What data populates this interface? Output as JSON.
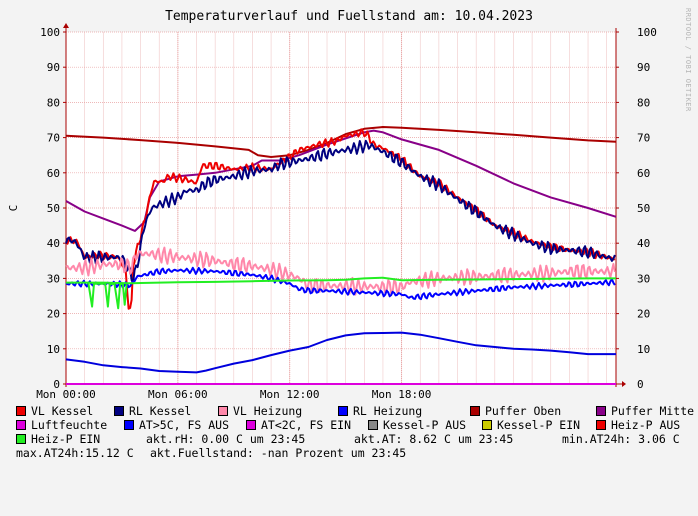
{
  "title": "Temperaturverlauf und Fuellstand am: 10.04.2023",
  "watermark": "RRDTOOL / TOBI OETIKER",
  "chart_data": {
    "type": "line",
    "ylabel": "C",
    "ylim": [
      0,
      100
    ],
    "yticks": [
      0,
      10,
      20,
      30,
      40,
      50,
      60,
      70,
      80,
      90,
      100
    ],
    "xlim_hours": [
      0,
      29.5
    ],
    "xticks": [
      {
        "label": "Mon 00:00",
        "hour": 0
      },
      {
        "label": "Mon 06:00",
        "hour": 6
      },
      {
        "label": "Mon 12:00",
        "hour": 12
      },
      {
        "label": "Mon 18:00",
        "hour": 18
      }
    ],
    "grid": true,
    "series": [
      {
        "name": "Puffer Oben",
        "color": "#aa0000",
        "width": 2,
        "points": [
          [
            0,
            70.5
          ],
          [
            2,
            70
          ],
          [
            4,
            69.3
          ],
          [
            6,
            68.5
          ],
          [
            8,
            67.5
          ],
          [
            9.8,
            66.5
          ],
          [
            10.3,
            65
          ],
          [
            11,
            64.5
          ],
          [
            12,
            65
          ],
          [
            13,
            66.5
          ],
          [
            14,
            68.5
          ],
          [
            15,
            71
          ],
          [
            16,
            72.5
          ],
          [
            17,
            73
          ],
          [
            18,
            72.8
          ],
          [
            20,
            72.2
          ],
          [
            22,
            71.5
          ],
          [
            24,
            70.8
          ],
          [
            26,
            70
          ],
          [
            28,
            69.2
          ],
          [
            29.5,
            68.8
          ]
        ]
      },
      {
        "name": "Puffer Mitte",
        "color": "#880088",
        "width": 2,
        "points": [
          [
            0,
            52
          ],
          [
            1,
            49
          ],
          [
            2,
            47
          ],
          [
            3,
            45
          ],
          [
            3.7,
            43.5
          ],
          [
            4.2,
            46
          ],
          [
            4.5,
            53
          ],
          [
            5,
            57.5
          ],
          [
            6,
            59
          ],
          [
            7,
            59.5
          ],
          [
            8,
            60
          ],
          [
            9,
            61
          ],
          [
            10,
            62
          ],
          [
            10.5,
            63.5
          ],
          [
            11.5,
            63.5
          ],
          [
            12.5,
            65
          ],
          [
            14,
            68
          ],
          [
            16,
            71.5
          ],
          [
            16.5,
            72
          ],
          [
            17,
            71.5
          ],
          [
            18,
            69.5
          ],
          [
            20,
            66.5
          ],
          [
            22,
            62
          ],
          [
            24,
            57
          ],
          [
            26,
            53
          ],
          [
            28,
            50
          ],
          [
            29.5,
            47.5
          ]
        ]
      },
      {
        "name": "VL Kessel",
        "color": "#ee0000",
        "width": 2,
        "noise": 1.2,
        "points": [
          [
            0,
            41
          ],
          [
            0.6,
            40.5
          ],
          [
            1,
            36
          ],
          [
            1.8,
            36.5
          ],
          [
            2.8,
            36
          ],
          [
            3.2,
            32
          ],
          [
            3.35,
            22
          ],
          [
            3.5,
            20.5
          ],
          [
            3.6,
            34
          ],
          [
            3.8,
            38
          ],
          [
            4.2,
            46
          ],
          [
            4.5,
            53
          ],
          [
            4.7,
            57.5
          ],
          [
            5.2,
            57.5
          ],
          [
            5.5,
            59
          ],
          [
            6.5,
            58
          ],
          [
            7,
            57
          ],
          [
            7.3,
            62
          ],
          [
            8,
            62
          ],
          [
            9,
            61
          ],
          [
            10,
            61.5
          ],
          [
            11,
            61
          ],
          [
            11.5,
            63
          ],
          [
            12,
            64.5
          ],
          [
            12.5,
            66.5
          ],
          [
            13.5,
            68
          ],
          [
            14.5,
            69
          ],
          [
            15,
            70.5
          ],
          [
            16,
            71.5
          ],
          [
            16.2,
            70.5
          ],
          [
            16.5,
            68
          ],
          [
            17,
            67
          ],
          [
            18,
            64
          ],
          [
            19,
            59
          ],
          [
            20,
            57
          ],
          [
            21,
            53
          ],
          [
            22,
            49.5
          ],
          [
            23,
            45
          ],
          [
            24,
            43
          ],
          [
            25,
            40.5
          ],
          [
            26,
            39
          ],
          [
            27,
            38
          ],
          [
            28,
            37.5
          ],
          [
            29,
            36
          ],
          [
            29.5,
            35.5
          ]
        ]
      },
      {
        "name": "RL Kessel",
        "color": "#000080",
        "width": 2,
        "noise": 1.8,
        "points": [
          [
            0,
            41
          ],
          [
            0.5,
            40.5
          ],
          [
            1,
            36
          ],
          [
            2,
            36
          ],
          [
            3,
            36
          ],
          [
            3.6,
            30
          ],
          [
            3.8,
            33
          ],
          [
            4.2,
            45
          ],
          [
            4.6,
            50
          ],
          [
            5,
            51
          ],
          [
            6,
            53
          ],
          [
            6.5,
            55
          ],
          [
            7,
            55
          ],
          [
            7.5,
            57
          ],
          [
            8,
            58
          ],
          [
            9,
            59
          ],
          [
            10,
            60.5
          ],
          [
            11,
            61
          ],
          [
            11.5,
            62.5
          ],
          [
            12,
            63
          ],
          [
            13,
            64
          ],
          [
            14,
            65.5
          ],
          [
            15,
            66.5
          ],
          [
            16,
            67.5
          ],
          [
            16.2,
            68
          ],
          [
            17,
            66
          ],
          [
            18,
            63
          ],
          [
            19,
            59
          ],
          [
            20,
            56.5
          ],
          [
            21,
            52.5
          ],
          [
            22,
            49
          ],
          [
            23,
            45
          ],
          [
            24,
            42.5
          ],
          [
            25,
            40
          ],
          [
            26,
            38.5
          ],
          [
            27,
            38
          ],
          [
            28,
            37.5
          ],
          [
            29,
            36
          ],
          [
            29.5,
            35.5
          ]
        ]
      },
      {
        "name": "VL Heizung",
        "color": "#ff88aa",
        "width": 2,
        "noise": 2.4,
        "points": [
          [
            0,
            33
          ],
          [
            1,
            33
          ],
          [
            2,
            34
          ],
          [
            3,
            34
          ],
          [
            3.5,
            33
          ],
          [
            3.8,
            37
          ],
          [
            4.5,
            37
          ],
          [
            6,
            36
          ],
          [
            8,
            35
          ],
          [
            9,
            34
          ],
          [
            10,
            33.5
          ],
          [
            11,
            32.5
          ],
          [
            12,
            31
          ],
          [
            12.5,
            30
          ],
          [
            13,
            28
          ],
          [
            18,
            27.5
          ],
          [
            18.5,
            29
          ],
          [
            20,
            30
          ],
          [
            22,
            30.5
          ],
          [
            24,
            31
          ],
          [
            26,
            31.5
          ],
          [
            27,
            32
          ],
          [
            29.5,
            32
          ]
        ]
      },
      {
        "name": "RL Heizung",
        "color": "#0000ff",
        "width": 2,
        "noise": 0.9,
        "points": [
          [
            0,
            28.5
          ],
          [
            1,
            28.5
          ],
          [
            2,
            28.5
          ],
          [
            3,
            28.3
          ],
          [
            3.5,
            28
          ],
          [
            3.8,
            30.5
          ],
          [
            5,
            32
          ],
          [
            6,
            32.3
          ],
          [
            8,
            32
          ],
          [
            9,
            31.5
          ],
          [
            10,
            31
          ],
          [
            11,
            30
          ],
          [
            12,
            28.5
          ],
          [
            12.5,
            27
          ],
          [
            13,
            26.5
          ],
          [
            14,
            26.5
          ],
          [
            16,
            26
          ],
          [
            18,
            25.5
          ],
          [
            18.5,
            24.5
          ],
          [
            20,
            25.5
          ],
          [
            22,
            26.5
          ],
          [
            24,
            27.5
          ],
          [
            26,
            28
          ],
          [
            28,
            28.5
          ],
          [
            29.5,
            29
          ]
        ]
      },
      {
        "name": "Heiz-P EIN",
        "color": "#22ee22",
        "width": 2,
        "points": [
          [
            0,
            28.8
          ],
          [
            2,
            28.8
          ],
          [
            3.5,
            28.6
          ],
          [
            4,
            28.7
          ],
          [
            6,
            28.9
          ],
          [
            8,
            29
          ],
          [
            10,
            29.2
          ],
          [
            12,
            29.4
          ],
          [
            14,
            29.5
          ],
          [
            15,
            29.6
          ],
          [
            16,
            30
          ],
          [
            17,
            30.2
          ],
          [
            18,
            29.5
          ],
          [
            20,
            29.6
          ],
          [
            22,
            29.7
          ],
          [
            24,
            29.8
          ],
          [
            26,
            29.9
          ],
          [
            28,
            30
          ],
          [
            29.5,
            30
          ]
        ]
      },
      {
        "name": "Heiz-P EIN dips",
        "color": "#22ee22",
        "width": 2,
        "points": [
          [
            1.2,
            28.6
          ],
          [
            1.4,
            22
          ],
          [
            1.5,
            28.5
          ],
          [
            2.1,
            28.5
          ],
          [
            2.25,
            22
          ],
          [
            2.35,
            28.4
          ],
          [
            2.6,
            28.4
          ],
          [
            2.8,
            21.5
          ],
          [
            2.9,
            28.4
          ],
          [
            3.05,
            28.4
          ],
          [
            3.15,
            22.5
          ],
          [
            3.25,
            28.3
          ]
        ]
      },
      {
        "name": "Luftfeuchte",
        "color": "#0000dd",
        "width": 2,
        "points": [
          [
            0,
            7
          ],
          [
            1,
            6.3
          ],
          [
            2,
            5.3
          ],
          [
            3,
            4.8
          ],
          [
            4,
            4.4
          ],
          [
            5,
            3.7
          ],
          [
            6,
            3.5
          ],
          [
            7,
            3.3
          ],
          [
            7.5,
            3.8
          ],
          [
            8,
            4.5
          ],
          [
            9,
            5.8
          ],
          [
            10,
            6.8
          ],
          [
            11,
            8.2
          ],
          [
            12,
            9.5
          ],
          [
            13,
            10.5
          ],
          [
            14,
            12.5
          ],
          [
            15,
            13.8
          ],
          [
            16,
            14.4
          ],
          [
            17,
            14.5
          ],
          [
            18,
            14.6
          ],
          [
            19,
            14
          ],
          [
            20,
            13
          ],
          [
            21,
            12
          ],
          [
            22,
            11
          ],
          [
            23,
            10.5
          ],
          [
            24,
            10
          ],
          [
            25,
            9.8
          ],
          [
            26,
            9.5
          ],
          [
            27,
            9
          ],
          [
            28,
            8.5
          ],
          [
            29.5,
            8.5
          ]
        ]
      },
      {
        "name": "baseline",
        "color": "#dd00dd",
        "width": 2,
        "points": [
          [
            0,
            0
          ],
          [
            29.5,
            0
          ]
        ]
      }
    ]
  },
  "legend": [
    {
      "label": "VL Kessel",
      "color": "#ee0000"
    },
    {
      "label": "RL Kessel",
      "color": "#000080"
    },
    {
      "label": "VL Heizung",
      "color": "#ff88aa"
    },
    {
      "label": "RL Heizung",
      "color": "#0000ff"
    },
    {
      "label": "Puffer Oben",
      "color": "#aa0000"
    },
    {
      "label": "Puffer Mitte",
      "color": "#880088"
    },
    {
      "label": "Luftfeuchte",
      "color": "#dd00dd"
    },
    {
      "label": "AT>5C, FS AUS",
      "color": "#0000ff"
    },
    {
      "label": "AT<2C, FS EIN",
      "color": "#dd00dd"
    },
    {
      "label": "Kessel-P AUS",
      "color": "#888888"
    },
    {
      "label": "Kessel-P EIN",
      "color": "#cccc00"
    },
    {
      "label": "Heiz-P AUS",
      "color": "#ee0000"
    },
    {
      "label": "Heiz-P EIN",
      "color": "#22ee22"
    }
  ],
  "stats": {
    "rh": "akt.rH: 0.00 C um 23:45",
    "at": "akt.AT: 8.62 C um 23:45",
    "min_at": "min.AT24h: 3.06 C",
    "max_at": "max.AT24h:15.12 C",
    "fuellstand": "akt.Fuellstand: -nan Prozent um 23:45"
  }
}
